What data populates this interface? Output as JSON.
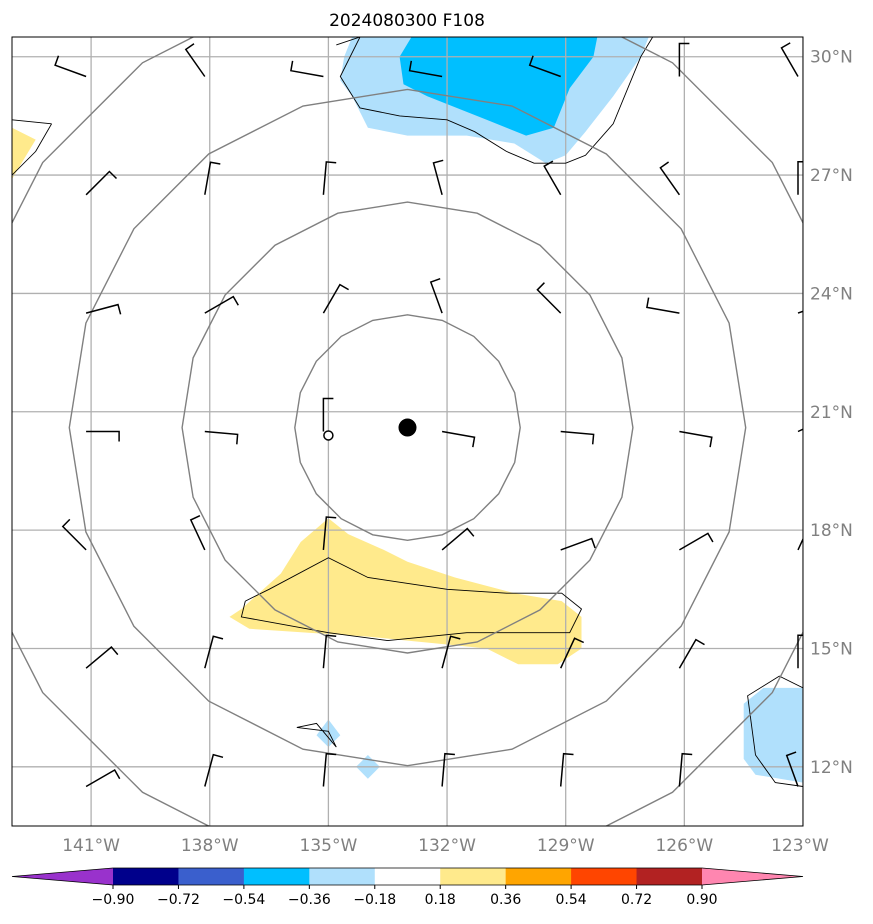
{
  "chart_data": {
    "type": "map",
    "title": "2024080300 F108",
    "projection": "plate-carree",
    "extent": {
      "lon": [
        -143.0,
        -123.0
      ],
      "lat": [
        10.5,
        30.5
      ]
    },
    "grid": true,
    "lat_ticks": [
      {
        "value": 30,
        "label": "30°N"
      },
      {
        "value": 27,
        "label": "27°N"
      },
      {
        "value": 24,
        "label": "24°N"
      },
      {
        "value": 21,
        "label": "21°N"
      },
      {
        "value": 18,
        "label": "18°N"
      },
      {
        "value": 15,
        "label": "15°N"
      },
      {
        "value": 12,
        "label": "12°N"
      }
    ],
    "lon_ticks": [
      {
        "value": -141,
        "label": "141°W"
      },
      {
        "value": -138,
        "label": "138°W"
      },
      {
        "value": -135,
        "label": "135°W"
      },
      {
        "value": -132,
        "label": "132°W"
      },
      {
        "value": -129,
        "label": "129°W"
      },
      {
        "value": -126,
        "label": "126°W"
      },
      {
        "value": -123,
        "label": "123°W"
      }
    ],
    "center": {
      "lon": -133.0,
      "lat": 20.6
    },
    "secondary_marker": {
      "lon": -135.0,
      "lat": 20.4
    },
    "range_rings_deg": [
      2.85,
      5.7,
      8.55,
      11.4
    ],
    "filled_regions": [
      {
        "level": 0.27,
        "color": "#ffea8c",
        "points": [
          [
            -143,
            28.2
          ],
          [
            -142.4,
            27.9
          ],
          [
            -142.7,
            27.4
          ],
          [
            -143,
            26.9
          ]
        ]
      },
      {
        "level": -0.27,
        "color": "#b0e0fc",
        "points": [
          [
            -134.4,
            30.5
          ],
          [
            -126.9,
            30.5
          ],
          [
            -127.1,
            30
          ],
          [
            -127.8,
            29
          ],
          [
            -128.5,
            28.1
          ],
          [
            -129.0,
            27.5
          ],
          [
            -129.5,
            27.3
          ],
          [
            -130.3,
            27.8
          ],
          [
            -131.5,
            28.0
          ],
          [
            -133.0,
            28.0
          ],
          [
            -134.0,
            28.2
          ],
          [
            -134.4,
            29.0
          ],
          [
            -134.7,
            29.4
          ],
          [
            -134.6,
            30
          ]
        ]
      },
      {
        "level": -0.45,
        "color": "#00bfff",
        "points": [
          [
            -132.9,
            30.5
          ],
          [
            -128.2,
            30.5
          ],
          [
            -128.3,
            30.0
          ],
          [
            -128.9,
            29.2
          ],
          [
            -129.3,
            28.2
          ],
          [
            -130.0,
            28.0
          ],
          [
            -131.0,
            28.4
          ],
          [
            -132.5,
            29.0
          ],
          [
            -133.1,
            29.3
          ],
          [
            -133.2,
            30.0
          ]
        ]
      },
      {
        "level": 0.27,
        "color": "#ffea8c",
        "points": [
          [
            -137.2,
            16.0
          ],
          [
            -136.2,
            16.9
          ],
          [
            -135.7,
            17.7
          ],
          [
            -135.0,
            18.3
          ],
          [
            -134.5,
            17.9
          ],
          [
            -133.6,
            17.5
          ],
          [
            -133.0,
            17.2
          ],
          [
            -131.8,
            16.8
          ],
          [
            -130.3,
            16.4
          ],
          [
            -129.1,
            16.2
          ],
          [
            -128.6,
            15.8
          ],
          [
            -128.6,
            15.0
          ],
          [
            -129.2,
            14.6
          ],
          [
            -130.2,
            14.6
          ],
          [
            -131.0,
            15.0
          ],
          [
            -132.0,
            15.1
          ],
          [
            -133.0,
            15.2
          ],
          [
            -134.0,
            15.3
          ],
          [
            -135.5,
            15.4
          ],
          [
            -137.0,
            15.5
          ],
          [
            -137.5,
            15.8
          ]
        ]
      },
      {
        "level": -0.27,
        "color": "#b0e0fc",
        "points": [
          [
            -123.0,
            14.0
          ],
          [
            -124.0,
            14.0
          ],
          [
            -124.5,
            13.6
          ],
          [
            -124.5,
            12.2
          ],
          [
            -124.2,
            11.8
          ],
          [
            -123.0,
            11.6
          ]
        ]
      },
      {
        "level": -0.27,
        "color": "#b0e0fc",
        "points": [
          [
            -135.0,
            13.2
          ],
          [
            -134.7,
            12.8
          ],
          [
            -135.0,
            12.5
          ],
          [
            -135.3,
            12.8
          ]
        ]
      },
      {
        "level": -0.27,
        "color": "#b0e0fc",
        "points": [
          [
            -134.0,
            12.3
          ],
          [
            -133.7,
            12.0
          ],
          [
            -134.0,
            11.7
          ],
          [
            -134.3,
            12.0
          ]
        ]
      }
    ],
    "contour_lines": [
      [
        [
          -142.0,
          28.3
        ],
        [
          -143.0,
          28.4
        ]
      ],
      [
        [
          -142.0,
          28.3
        ],
        [
          -142.4,
          27.6
        ],
        [
          -143.0,
          27.0
        ]
      ],
      [
        [
          -134.8,
          30.3
        ],
        [
          -134.2,
          30.5
        ],
        [
          -134.7,
          29.5
        ],
        [
          -134.2,
          28.7
        ],
        [
          -133.2,
          28.5
        ],
        [
          -132.0,
          28.4
        ],
        [
          -131.3,
          28.1
        ],
        [
          -130.5,
          27.6
        ],
        [
          -129.8,
          27.3
        ],
        [
          -129.0,
          27.3
        ],
        [
          -128.5,
          27.5
        ],
        [
          -127.8,
          28.3
        ],
        [
          -127.1,
          30.0
        ],
        [
          -126.8,
          30.5
        ]
      ],
      [
        [
          -137.1,
          16.2
        ],
        [
          -136.5,
          16.5
        ],
        [
          -135.0,
          17.3
        ],
        [
          -134.0,
          16.8
        ],
        [
          -132.0,
          16.5
        ],
        [
          -130.5,
          16.4
        ],
        [
          -129.1,
          16.4
        ],
        [
          -128.6,
          16.0
        ],
        [
          -128.9,
          15.4
        ],
        [
          -130.5,
          15.4
        ],
        [
          -131.5,
          15.4
        ],
        [
          -133.5,
          15.2
        ],
        [
          -135.0,
          15.4
        ],
        [
          -137.2,
          15.8
        ],
        [
          -137.1,
          16.2
        ]
      ],
      [
        [
          -123.0,
          14.0
        ],
        [
          -123.6,
          14.3
        ],
        [
          -124.4,
          13.8
        ],
        [
          -124.2,
          12.3
        ],
        [
          -123.7,
          11.6
        ],
        [
          -123.0,
          11.5
        ]
      ],
      [
        [
          -135.8,
          13.0
        ],
        [
          -135.3,
          13.1
        ],
        [
          -134.8,
          12.5
        ],
        [
          -135.0,
          12.9
        ],
        [
          -135.8,
          13.0
        ]
      ]
    ],
    "barb_angles_deg": [
      [
        290,
        325,
        280,
        280,
        290,
        0,
        330
      ],
      [
        45,
        10,
        5,
        345,
        330,
        325,
        0
      ],
      [
        75,
        60,
        30,
        340,
        315,
        280,
        70
      ],
      [
        90,
        95,
        0,
        100,
        95,
        100,
        65
      ],
      [
        315,
        335,
        5,
        50,
        70,
        60,
        25
      ],
      [
        50,
        15,
        5,
        15,
        25,
        30,
        0
      ],
      [
        60,
        15,
        5,
        5,
        5,
        5,
        340
      ]
    ],
    "colorbar": {
      "levels": [
        "−0.90",
        "−0.72",
        "−0.54",
        "−0.36",
        "−0.18",
        "0.18",
        "0.36",
        "0.54",
        "0.72",
        "0.90"
      ],
      "colors": [
        "#9932cc",
        "#00008b",
        "#3a5fcd",
        "#00bfff",
        "#b0e0fc",
        "#ffffff",
        "#ffea8c",
        "#ffa500",
        "#ff4500",
        "#b22222",
        "#ff86b0"
      ],
      "extend": "both"
    }
  }
}
